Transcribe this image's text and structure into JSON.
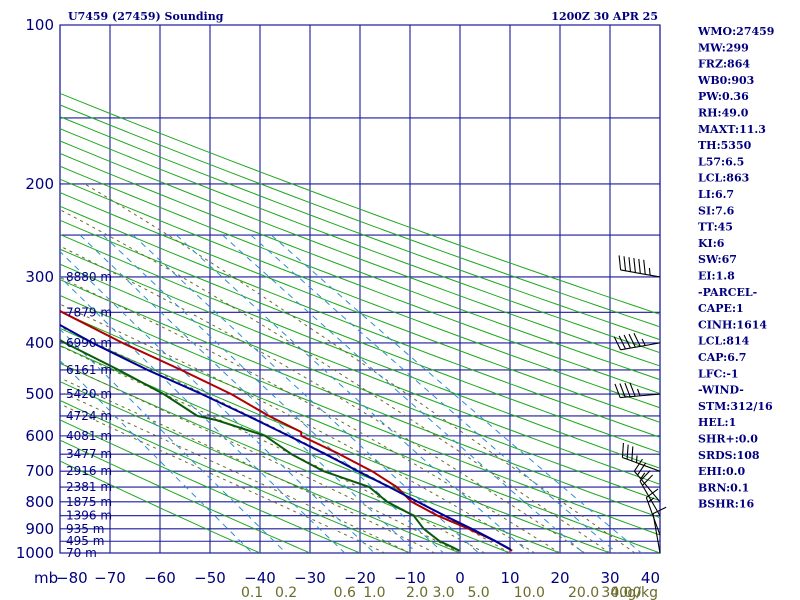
{
  "title_left": "U7459 (27459) Sounding",
  "title_right": "1200Z 30 APR 25",
  "colors": {
    "grid": "#1a1a9e",
    "dry_adiabat": "#1fa81f",
    "moist_adiabat": "#6b6b2a",
    "mixing_ratio": "#2a8fd0",
    "temperature": "#b00000",
    "dewpoint": "#0b5a0b",
    "parcel": "#00009a",
    "wind": "#000000"
  },
  "indices": [
    "WMO:27459",
    "MW:299",
    "FRZ:864",
    "WB0:903",
    "PW:0.36",
    "RH:49.0",
    "MAXT:11.3",
    "TH:5350",
    "L57:6.5",
    "LCL:863",
    "LI:6.7",
    "SI:7.6",
    "TT:45",
    "KI:6",
    "SW:67",
    "EI:1.8",
    "-PARCEL-",
    "CAPE:1",
    "CINH:1614",
    "LCL:814",
    "CAP:6.7",
    "LFC:-1",
    "-WIND-",
    "STM:312/16",
    "HEL:1",
    "SHR+:0.0",
    "SRDS:108",
    "EHI:0.0",
    "BRN:0.1",
    "BSHR:16"
  ],
  "chart_data": {
    "type": "line",
    "title": "U7459 (27459) Sounding",
    "subtitle": "1200Z 30 APR 25",
    "y_scale": "log-pressure",
    "ylim": [
      1000,
      100
    ],
    "xlim": [
      -80,
      40
    ],
    "pressure_ticks": [
      100,
      200,
      300,
      400,
      500,
      600,
      700,
      800,
      900,
      1000
    ],
    "temperature_ticks": [
      -80,
      -70,
      -60,
      -50,
      -40,
      -30,
      -20,
      -10,
      0,
      10,
      20,
      30,
      40
    ],
    "pressure_unit_label": "mb",
    "mixing_ratio_ticks": [
      "0.1",
      "0.2",
      "0.6",
      "1.0",
      "2.0",
      "3.0",
      "5.0",
      "10.0",
      "20.0",
      "30.0",
      "40.0"
    ],
    "mixing_ratio_unit": "g/kg",
    "grid": true,
    "height_labels": [
      {
        "p": 300,
        "label": "8880 m"
      },
      {
        "p": 350,
        "label": "7879 m"
      },
      {
        "p": 400,
        "label": "6990 m"
      },
      {
        "p": 450,
        "label": "6161 m"
      },
      {
        "p": 500,
        "label": "5420 m"
      },
      {
        "p": 550,
        "label": "4724 m"
      },
      {
        "p": 600,
        "label": "4081 m"
      },
      {
        "p": 650,
        "label": "3477 m"
      },
      {
        "p": 700,
        "label": "2916 m"
      },
      {
        "p": 750,
        "label": "2381 m"
      },
      {
        "p": 800,
        "label": "1875 m"
      },
      {
        "p": 850,
        "label": "1396 m"
      },
      {
        "p": 900,
        "label": "935 m"
      },
      {
        "p": 950,
        "label": "495 m"
      },
      {
        "p": 1000,
        "label": "70 m"
      }
    ],
    "series": [
      {
        "key": "temperature",
        "points": [
          {
            "p": 300,
            "t": -45.8
          },
          {
            "p": 330,
            "t": -43.2
          },
          {
            "p": 350,
            "t": -41.0
          },
          {
            "p": 400,
            "t": -33.9
          },
          {
            "p": 450,
            "t": -26.5
          },
          {
            "p": 500,
            "t": -20.3
          },
          {
            "p": 550,
            "t": -16.3
          },
          {
            "p": 590,
            "t": -12.4
          },
          {
            "p": 600,
            "t": -13.0
          },
          {
            "p": 650,
            "t": -8.3
          },
          {
            "p": 700,
            "t": -4.5
          },
          {
            "p": 750,
            "t": -2.1
          },
          {
            "p": 800,
            "t": -1.5
          },
          {
            "p": 850,
            "t": 1.5
          },
          {
            "p": 900,
            "t": 5.6
          },
          {
            "p": 950,
            "t": 9.0
          },
          {
            "p": 990,
            "t": 10.8
          }
        ]
      },
      {
        "key": "dewpoint",
        "points": [
          {
            "p": 300,
            "t": -56.5
          },
          {
            "p": 330,
            "t": -53.5
          },
          {
            "p": 350,
            "t": -51.0
          },
          {
            "p": 400,
            "t": -45.4
          },
          {
            "p": 450,
            "t": -39.0
          },
          {
            "p": 500,
            "t": -33.8
          },
          {
            "p": 550,
            "t": -30.6
          },
          {
            "p": 560,
            "t": -27.5
          },
          {
            "p": 600,
            "t": -20.2
          },
          {
            "p": 650,
            "t": -17.9
          },
          {
            "p": 700,
            "t": -14.2
          },
          {
            "p": 750,
            "t": -7.6
          },
          {
            "p": 800,
            "t": -6.4
          },
          {
            "p": 850,
            "t": -3.3
          },
          {
            "p": 900,
            "t": -3.4
          },
          {
            "p": 950,
            "t": -2.2
          },
          {
            "p": 975,
            "t": -0.6
          },
          {
            "p": 990,
            "t": 0.2
          }
        ]
      },
      {
        "key": "parcel",
        "points": [
          {
            "p": 230,
            "t": -58.4
          },
          {
            "p": 260,
            "t": -55.6
          },
          {
            "p": 300,
            "t": -51.8
          },
          {
            "p": 350,
            "t": -46.1
          },
          {
            "p": 400,
            "t": -39.9
          },
          {
            "p": 450,
            "t": -33.2
          },
          {
            "p": 500,
            "t": -26.2
          },
          {
            "p": 550,
            "t": -20.5
          },
          {
            "p": 600,
            "t": -15.5
          },
          {
            "p": 650,
            "t": -11.1
          },
          {
            "p": 700,
            "t": -7.3
          },
          {
            "p": 750,
            "t": -3.6
          },
          {
            "p": 800,
            "t": -0.3
          },
          {
            "p": 850,
            "t": 2.9
          },
          {
            "p": 900,
            "t": 6.2
          },
          {
            "p": 950,
            "t": 9.0
          },
          {
            "p": 985,
            "t": 10.7
          }
        ]
      }
    ],
    "winds": [
      {
        "p": 300,
        "dir": 280,
        "speed": 65
      },
      {
        "p": 400,
        "dir": 260,
        "speed": 55
      },
      {
        "p": 500,
        "dir": 265,
        "speed": 45
      },
      {
        "p": 700,
        "dir": 290,
        "speed": 35
      },
      {
        "p": 800,
        "dir": 320,
        "speed": 25
      },
      {
        "p": 850,
        "dir": 330,
        "speed": 20
      },
      {
        "p": 925,
        "dir": 340,
        "speed": 15
      },
      {
        "p": 1000,
        "dir": 350,
        "speed": 10
      }
    ]
  }
}
